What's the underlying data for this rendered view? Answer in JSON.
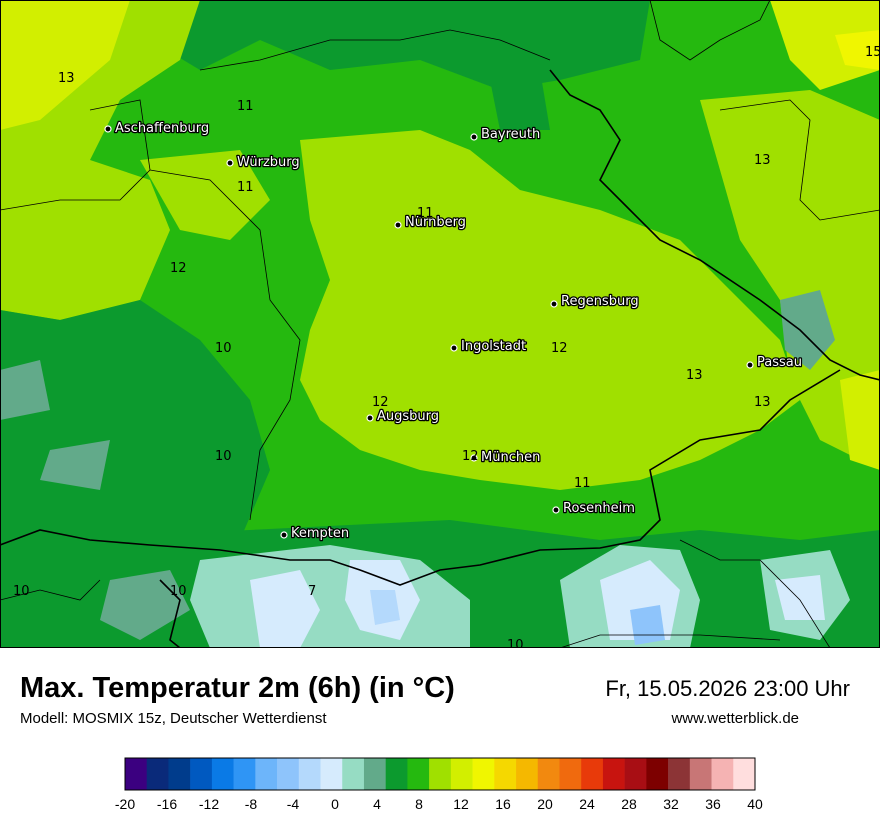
{
  "header": {
    "title": "Max. Temperatur 2m (6h) (in °C)",
    "subtitle": "Modell: MOSMIX 15z, Deutscher Wetterdienst",
    "datetime": "Fr, 15.05.2026 23:00 Uhr",
    "website": "www.wetterblick.de"
  },
  "cities": [
    {
      "name": "Aschaffenburg"
    },
    {
      "name": "Würzburg"
    },
    {
      "name": "Bayreuth"
    },
    {
      "name": "Nürnberg"
    },
    {
      "name": "Regensburg"
    },
    {
      "name": "Ingolstadt"
    },
    {
      "name": "Passau"
    },
    {
      "name": "Augsburg"
    },
    {
      "name": "München"
    },
    {
      "name": "Rosenheim"
    },
    {
      "name": "Kempten"
    }
  ],
  "value_labels": [
    "13",
    "11",
    "11",
    "13",
    "11",
    "12",
    "10",
    "12",
    "13",
    "13",
    "12",
    "10",
    "12",
    "11",
    "10",
    "10",
    "7",
    "10",
    "15"
  ],
  "legend": {
    "ticks": [
      "-20",
      "-16",
      "-12",
      "-8",
      "-4",
      "0",
      "4",
      "8",
      "12",
      "16",
      "20",
      "24",
      "28",
      "32",
      "36",
      "40"
    ],
    "colors": [
      "#3b0080",
      "#0a2a7a",
      "#003c8c",
      "#0059c0",
      "#0a7ae6",
      "#2f95f5",
      "#6db5fa",
      "#8ec4fb",
      "#b4d9fc",
      "#d6ebfd",
      "#96dcc3",
      "#62aa8a",
      "#0c9a2e",
      "#25b90f",
      "#a0e000",
      "#d2ef00",
      "#f0f600",
      "#f5d800",
      "#f5b800",
      "#f2890f",
      "#f06a0e",
      "#e83a0a",
      "#c8140f",
      "#a80e14",
      "#7d0000",
      "#8c3436",
      "#c87676",
      "#f5b3b3",
      "#ffdede"
    ]
  }
}
